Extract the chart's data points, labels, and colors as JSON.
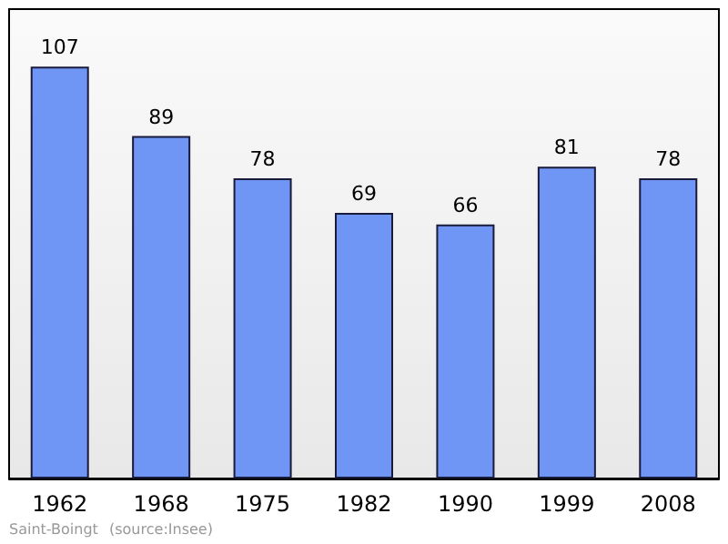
{
  "chart_data": {
    "type": "bar",
    "categories": [
      "1962",
      "1968",
      "1975",
      "1982",
      "1990",
      "1999",
      "2008"
    ],
    "values": [
      107,
      89,
      78,
      69,
      66,
      81,
      78
    ],
    "color": "#6f96f5",
    "data_labels": true,
    "grid": false,
    "annotations": [
      "Saint-Boingt",
      "(source:Insee)"
    ]
  }
}
